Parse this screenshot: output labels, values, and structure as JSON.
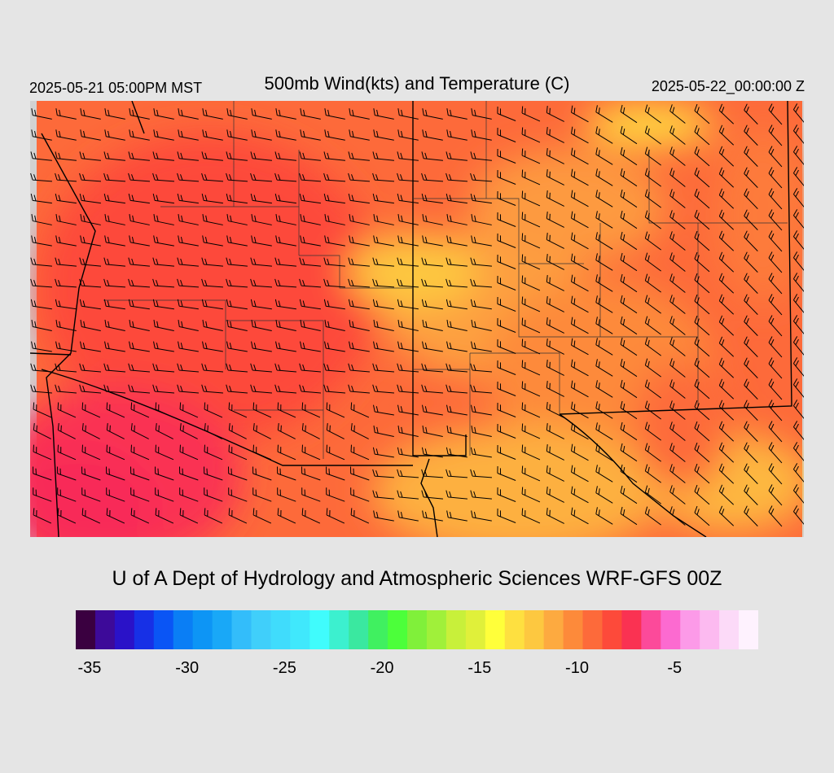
{
  "header": {
    "local_time": "2025-05-21 05:00PM MST",
    "title": "500mb Wind(kts) and Temperature (C)",
    "valid_time": "2025-05-22_00:00:00 Z"
  },
  "footer": {
    "credit": "U of A Dept of Hydrology and Atmospheric Sciences WRF-GFS 00Z"
  },
  "colorbar": {
    "colors": [
      "#3a0040",
      "#3d0a99",
      "#2a12c8",
      "#1730e6",
      "#0a55f5",
      "#0a7ef5",
      "#0d95f5",
      "#19a8f7",
      "#33bdfa",
      "#40cffa",
      "#40dcfc",
      "#40e8fc",
      "#40fcfc",
      "#3cf0cf",
      "#3ae8a0",
      "#40f060",
      "#4cff3a",
      "#80f03a",
      "#a0f03a",
      "#c8f03a",
      "#e0f03a",
      "#ffff3a",
      "#fee040",
      "#fdc840",
      "#fdaa40",
      "#fd8a3a",
      "#fd6a3a",
      "#fd4a3a",
      "#fa3252",
      "#fc4a9a",
      "#fc6ad0",
      "#fc9ae8",
      "#fcbaf0",
      "#fcdaf8",
      "#fef2fe"
    ],
    "tick_labels": [
      "-35",
      "-30",
      "-25",
      "-20",
      "-15",
      "-10",
      "-5"
    ]
  },
  "map_legend": {
    "region": "Southwestern United States",
    "field": "temperature",
    "vectors": "wind barbs"
  }
}
